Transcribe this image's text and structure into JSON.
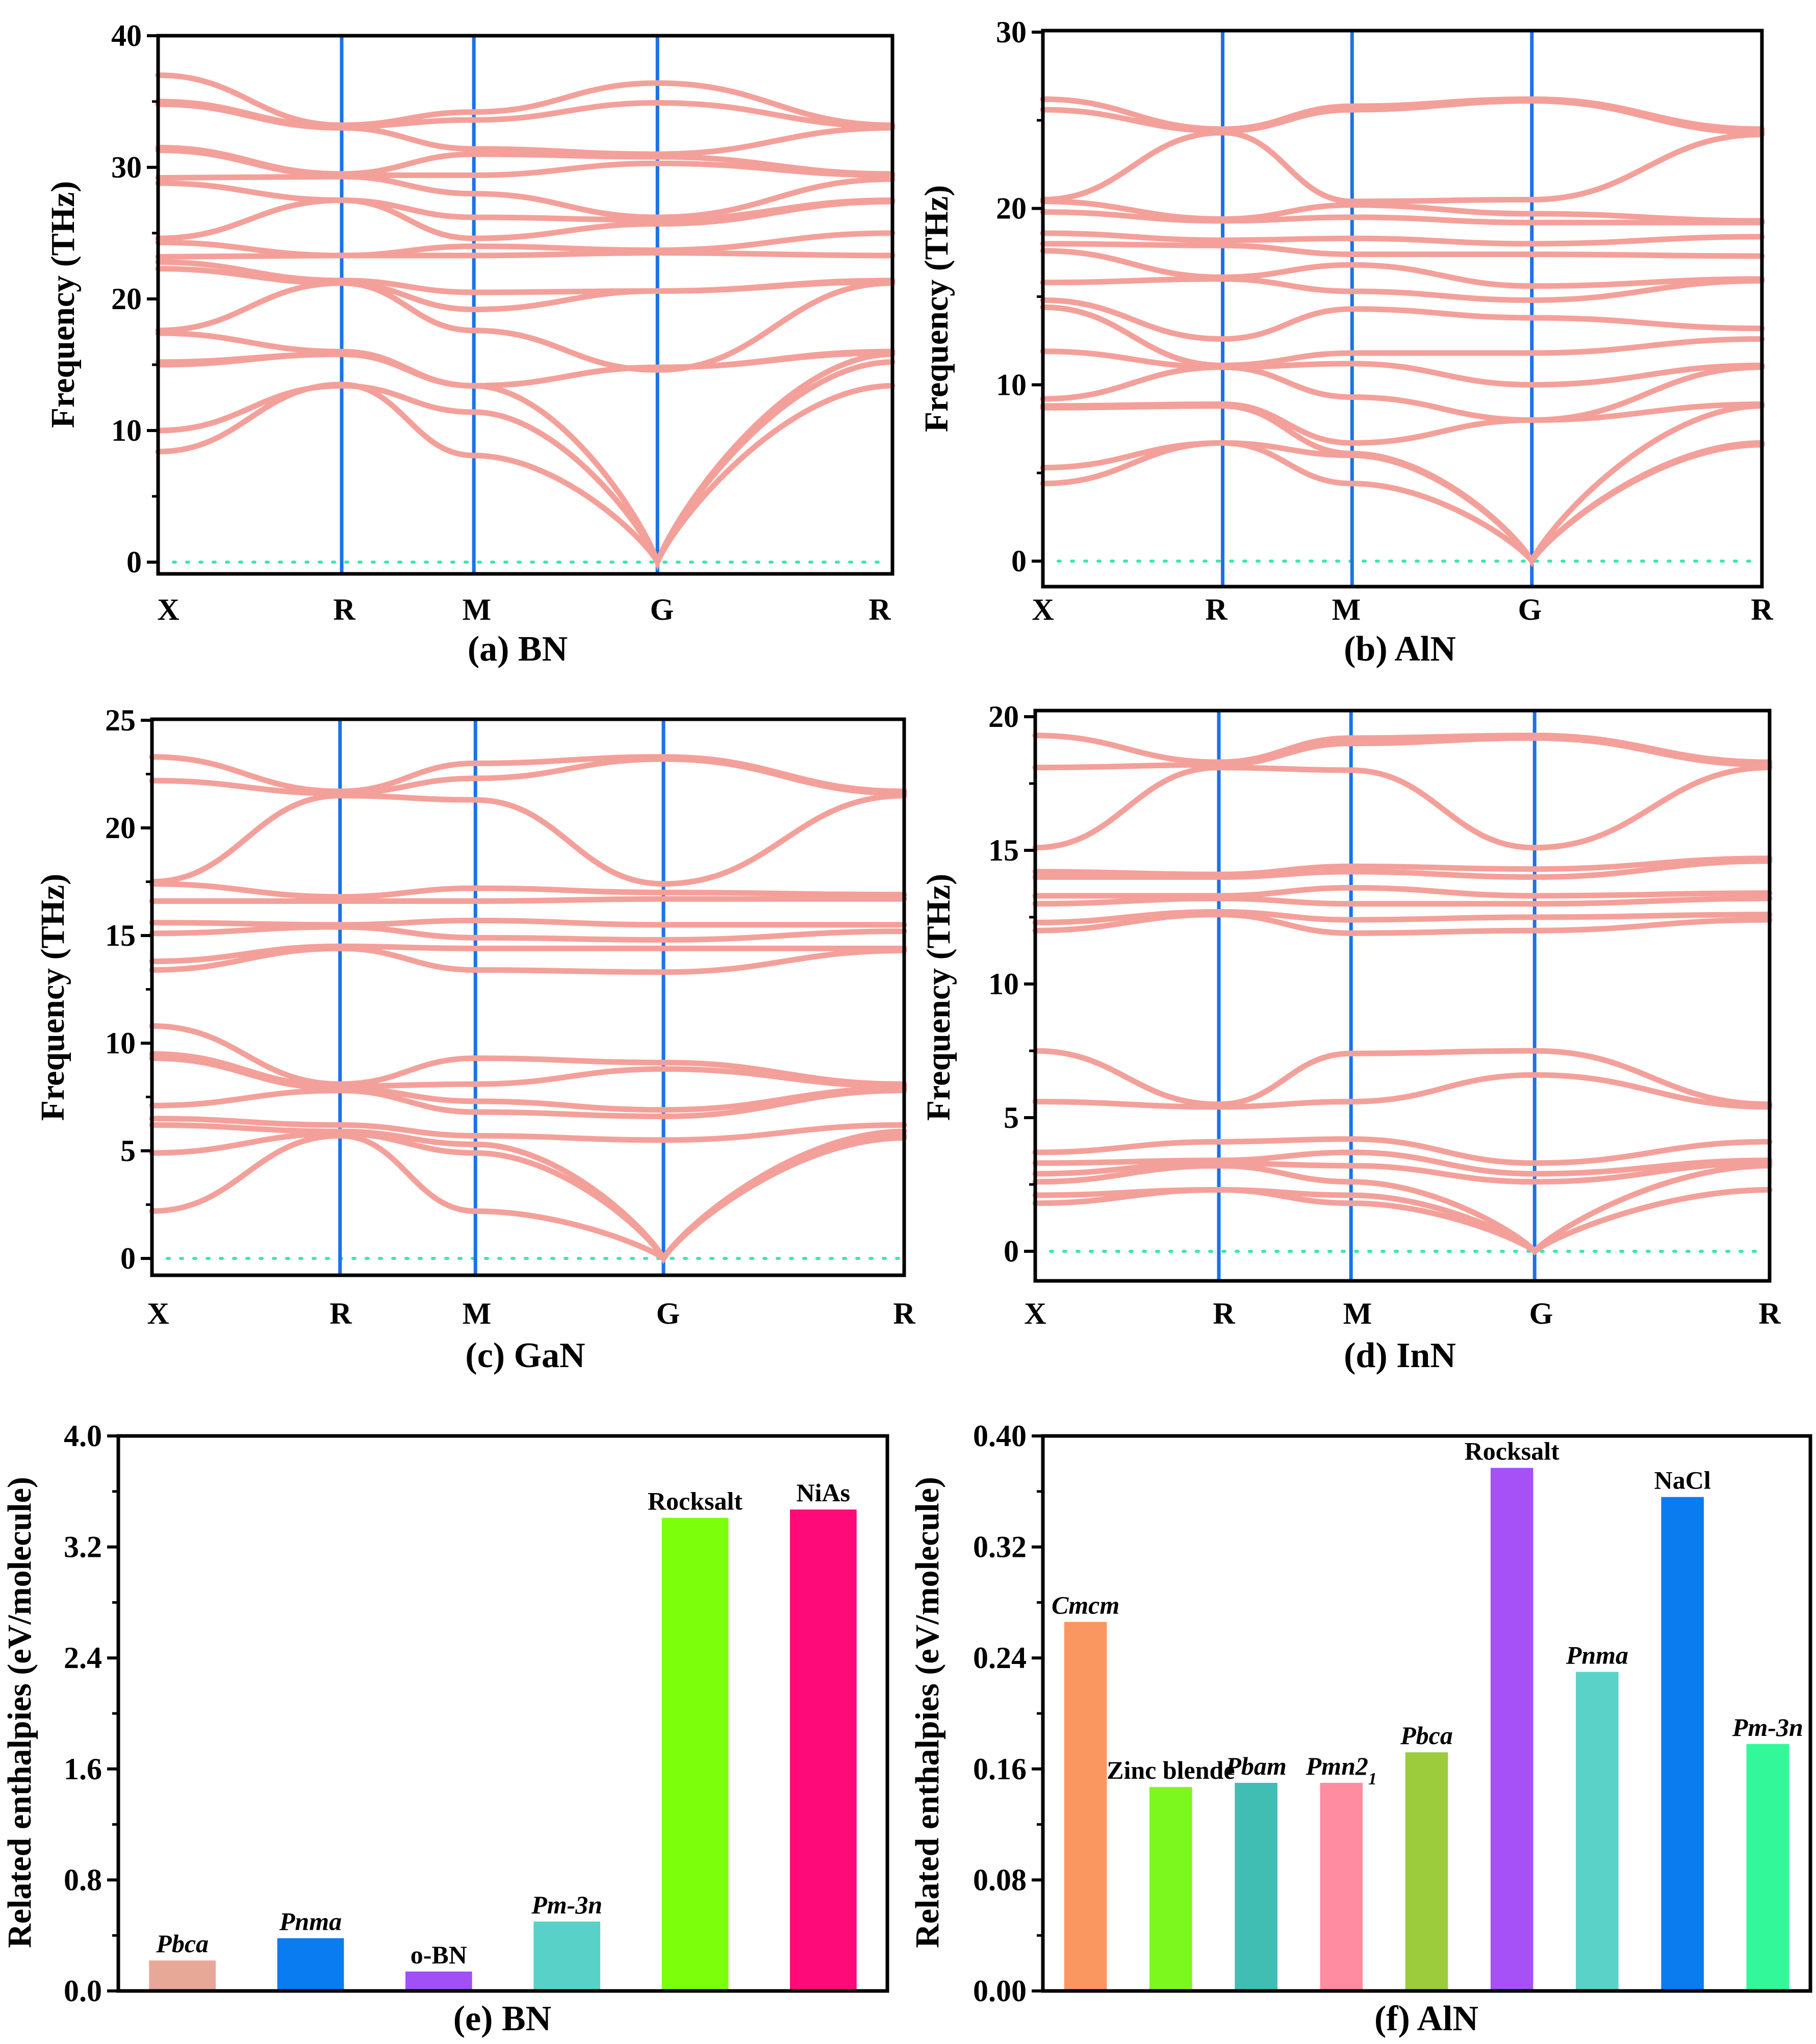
{
  "chart_data": [
    {
      "type": "line",
      "panel": "a",
      "caption": "(a) BN",
      "ylabel": "Frequency (THz)",
      "ylim": [
        0,
        40
      ],
      "yticks": [
        "0",
        "10",
        "20",
        "30",
        "40"
      ],
      "kpoints": [
        "X",
        "R",
        "M",
        "G",
        "R"
      ],
      "kpath_positions": [
        0,
        1,
        1.72,
        2.72,
        4.0
      ],
      "band_color": "#f4a09a",
      "divider_color": "#1a73e8",
      "zero_line_color": "#3ee6b0",
      "bands": [
        [
          8.4,
          13.5,
          8.1,
          0,
          13.4
        ],
        [
          10.0,
          13.4,
          11.4,
          0,
          15.2
        ],
        [
          15.0,
          15.8,
          13.4,
          0,
          15.8
        ],
        [
          15.2,
          15.8,
          13.4,
          14.8,
          15.9
        ],
        [
          17.4,
          16.0,
          13.4,
          14.8,
          16.0
        ],
        [
          17.6,
          21.2,
          17.6,
          14.6,
          21.2
        ],
        [
          22.3,
          21.2,
          19.2,
          20.6,
          21.3
        ],
        [
          22.8,
          21.4,
          20.5,
          20.6,
          21.4
        ],
        [
          23.2,
          23.3,
          23.3,
          23.5,
          23.3
        ],
        [
          24.3,
          23.3,
          24.0,
          23.7,
          25.0
        ],
        [
          24.6,
          27.5,
          24.6,
          25.7,
          27.4
        ],
        [
          28.8,
          27.5,
          26.2,
          26.0,
          27.5
        ],
        [
          29.2,
          29.3,
          28.0,
          26.2,
          29.1
        ],
        [
          31.3,
          29.4,
          29.4,
          30.3,
          29.4
        ],
        [
          31.5,
          29.5,
          31.0,
          30.8,
          29.5
        ],
        [
          34.8,
          33.0,
          31.4,
          31.0,
          33.0
        ],
        [
          35.0,
          33.1,
          33.6,
          34.9,
          33.1
        ],
        [
          37.0,
          33.2,
          34.2,
          36.4,
          33.2
        ]
      ]
    },
    {
      "type": "line",
      "panel": "b",
      "caption": "(b) AlN",
      "ylabel": "Frequency (THz)",
      "ylim": [
        0,
        30
      ],
      "yticks": [
        "0",
        "10",
        "20",
        "30"
      ],
      "kpoints": [
        "X",
        "R",
        "M",
        "G",
        "R"
      ],
      "kpath_positions": [
        0,
        1,
        1.72,
        2.72,
        4.0
      ],
      "band_color": "#f4a09a",
      "divider_color": "#1a73e8",
      "zero_line_color": "#3ee6b0",
      "bands": [
        [
          4.4,
          6.7,
          4.4,
          0,
          6.6
        ],
        [
          5.3,
          6.7,
          6.0,
          0,
          6.7
        ],
        [
          8.7,
          8.8,
          6.1,
          0,
          8.8
        ],
        [
          8.8,
          8.9,
          6.7,
          8.0,
          8.9
        ],
        [
          9.2,
          11.0,
          9.3,
          8.0,
          11.0
        ],
        [
          11.9,
          11.0,
          11.2,
          10.0,
          11.1
        ],
        [
          14.4,
          11.1,
          11.8,
          11.8,
          12.6
        ],
        [
          14.8,
          12.6,
          14.3,
          13.8,
          13.2
        ],
        [
          15.8,
          16.0,
          15.3,
          14.8,
          15.9
        ],
        [
          17.6,
          16.1,
          16.8,
          15.6,
          16.0
        ],
        [
          18.0,
          17.9,
          17.4,
          17.4,
          17.3
        ],
        [
          18.6,
          18.2,
          18.3,
          18.0,
          18.4
        ],
        [
          19.8,
          19.3,
          19.5,
          19.2,
          19.2
        ],
        [
          20.4,
          19.4,
          20.2,
          19.7,
          19.3
        ],
        [
          20.5,
          24.3,
          20.4,
          20.5,
          24.2
        ],
        [
          25.6,
          24.4,
          25.6,
          26.1,
          24.3
        ],
        [
          26.2,
          24.5,
          25.8,
          26.2,
          24.5
        ]
      ]
    },
    {
      "type": "line",
      "panel": "c",
      "caption": "(c) GaN",
      "ylabel": "Frequency (THz)",
      "ylim": [
        0,
        25
      ],
      "yticks": [
        "0",
        "5",
        "10",
        "15",
        "20",
        "25"
      ],
      "kpoints": [
        "X",
        "R",
        "M",
        "G",
        "R"
      ],
      "kpath_positions": [
        0,
        1,
        1.72,
        2.72,
        4.0
      ],
      "band_color": "#f4a09a",
      "divider_color": "#1a73e8",
      "zero_line_color": "#3ee6b0",
      "bands": [
        [
          2.2,
          5.7,
          2.2,
          0,
          5.6
        ],
        [
          4.9,
          5.8,
          4.9,
          0,
          5.7
        ],
        [
          6.2,
          5.9,
          5.3,
          0,
          5.9
        ],
        [
          6.5,
          6.2,
          5.7,
          5.5,
          6.2
        ],
        [
          7.1,
          7.8,
          6.8,
          6.6,
          7.8
        ],
        [
          9.3,
          7.9,
          7.3,
          6.9,
          7.9
        ],
        [
          9.5,
          8.0,
          8.1,
          8.8,
          8.0
        ],
        [
          10.8,
          8.1,
          9.3,
          9.1,
          8.1
        ],
        [
          13.4,
          14.4,
          13.4,
          13.3,
          14.3
        ],
        [
          13.8,
          14.5,
          14.4,
          14.4,
          14.4
        ],
        [
          15.1,
          15.4,
          14.9,
          14.8,
          15.2
        ],
        [
          15.6,
          15.5,
          15.7,
          15.5,
          15.5
        ],
        [
          16.6,
          16.6,
          16.6,
          16.7,
          16.7
        ],
        [
          17.4,
          16.8,
          17.2,
          17.0,
          16.9
        ],
        [
          17.5,
          21.5,
          21.3,
          17.4,
          21.5
        ],
        [
          22.2,
          21.6,
          22.3,
          23.2,
          21.6
        ],
        [
          23.3,
          21.7,
          23.0,
          23.3,
          21.7
        ]
      ]
    },
    {
      "type": "line",
      "panel": "d",
      "caption": "(d) InN",
      "ylabel": "Frequency (THz)",
      "ylim": [
        0,
        20
      ],
      "yticks": [
        "0",
        "5",
        "10",
        "15",
        "20"
      ],
      "kpoints": [
        "X",
        "R",
        "M",
        "G",
        "R"
      ],
      "kpath_positions": [
        0,
        1,
        1.72,
        2.72,
        4.0
      ],
      "band_color": "#f4a09a",
      "divider_color": "#1a73e8",
      "zero_line_color": "#3ee6b0",
      "bands": [
        [
          1.8,
          2.3,
          1.8,
          0,
          2.3
        ],
        [
          2.1,
          2.3,
          2.1,
          0,
          2.3
        ],
        [
          2.6,
          3.2,
          2.6,
          0,
          3.2
        ],
        [
          2.9,
          3.3,
          3.2,
          2.6,
          3.3
        ],
        [
          3.3,
          3.4,
          3.7,
          2.9,
          3.4
        ],
        [
          3.7,
          4.1,
          4.2,
          3.3,
          4.1
        ],
        [
          5.6,
          5.4,
          5.6,
          6.6,
          5.4
        ],
        [
          7.5,
          5.5,
          7.4,
          7.5,
          5.5
        ],
        [
          12.0,
          12.6,
          11.9,
          12.0,
          12.4
        ],
        [
          12.3,
          12.7,
          12.4,
          12.5,
          12.6
        ],
        [
          13.0,
          13.2,
          13.0,
          13.0,
          13.2
        ],
        [
          13.3,
          13.3,
          13.6,
          13.3,
          13.4
        ],
        [
          14.0,
          14.0,
          14.2,
          14.0,
          14.6
        ],
        [
          14.2,
          14.1,
          14.4,
          14.3,
          14.7
        ],
        [
          15.1,
          18.1,
          18.0,
          15.1,
          18.1
        ],
        [
          18.1,
          18.2,
          19.0,
          19.2,
          18.2
        ],
        [
          19.3,
          18.3,
          19.2,
          19.3,
          18.3
        ]
      ]
    },
    {
      "type": "bar",
      "panel": "e",
      "caption": "(e) BN",
      "ylabel": "Related enthalpies (eV/molecule)",
      "ylim": [
        0,
        4.0
      ],
      "yticks": [
        "0.0",
        "0.8",
        "1.6",
        "2.4",
        "3.2",
        "4.0"
      ],
      "categories": [
        {
          "label": "Pbca",
          "italic": true,
          "value": 0.22,
          "color": "#e8a898"
        },
        {
          "label": "Pnma",
          "italic": true,
          "value": 0.38,
          "color": "#0a7cf2"
        },
        {
          "label": "o-BN",
          "italic": false,
          "value": 0.14,
          "color": "#a050f5"
        },
        {
          "label": "Pm-3n",
          "italic": true,
          "value": 0.5,
          "color": "#58d2c8"
        },
        {
          "label": "Rocksalt",
          "italic": false,
          "value": 3.41,
          "color": "#7cff0a"
        },
        {
          "label": "NiAs",
          "italic": false,
          "value": 3.47,
          "color": "#ff0a78"
        }
      ]
    },
    {
      "type": "bar",
      "panel": "f",
      "caption": "(f) AlN",
      "ylabel": "Related enthalpies (eV/molecule)",
      "ylim": [
        0,
        0.4
      ],
      "yticks": [
        "0.00",
        "0.08",
        "0.16",
        "0.24",
        "0.32",
        "0.40"
      ],
      "categories": [
        {
          "label": "Cmcm",
          "italic": true,
          "value": 0.266,
          "color": "#fa9660"
        },
        {
          "label": "Zinc blende",
          "italic": false,
          "value": 0.147,
          "color": "#7cf81e"
        },
        {
          "label": "Pbam",
          "italic": true,
          "value": 0.15,
          "color": "#40beb4"
        },
        {
          "label": "Pmn2",
          "sub": "1",
          "italic": true,
          "value": 0.15,
          "color": "#ff8ca0"
        },
        {
          "label": "Pbca",
          "italic": true,
          "value": 0.172,
          "color": "#9ccc3c"
        },
        {
          "label": "Rocksalt",
          "italic": false,
          "value": 0.377,
          "color": "#a650f8"
        },
        {
          "label": "Pnma",
          "italic": true,
          "value": 0.23,
          "color": "#5ad2c8"
        },
        {
          "label": "NaCl",
          "italic": false,
          "value": 0.356,
          "color": "#0a7cf0"
        },
        {
          "label": "Pm-3n",
          "italic": true,
          "value": 0.178,
          "color": "#32f89a"
        }
      ]
    }
  ]
}
